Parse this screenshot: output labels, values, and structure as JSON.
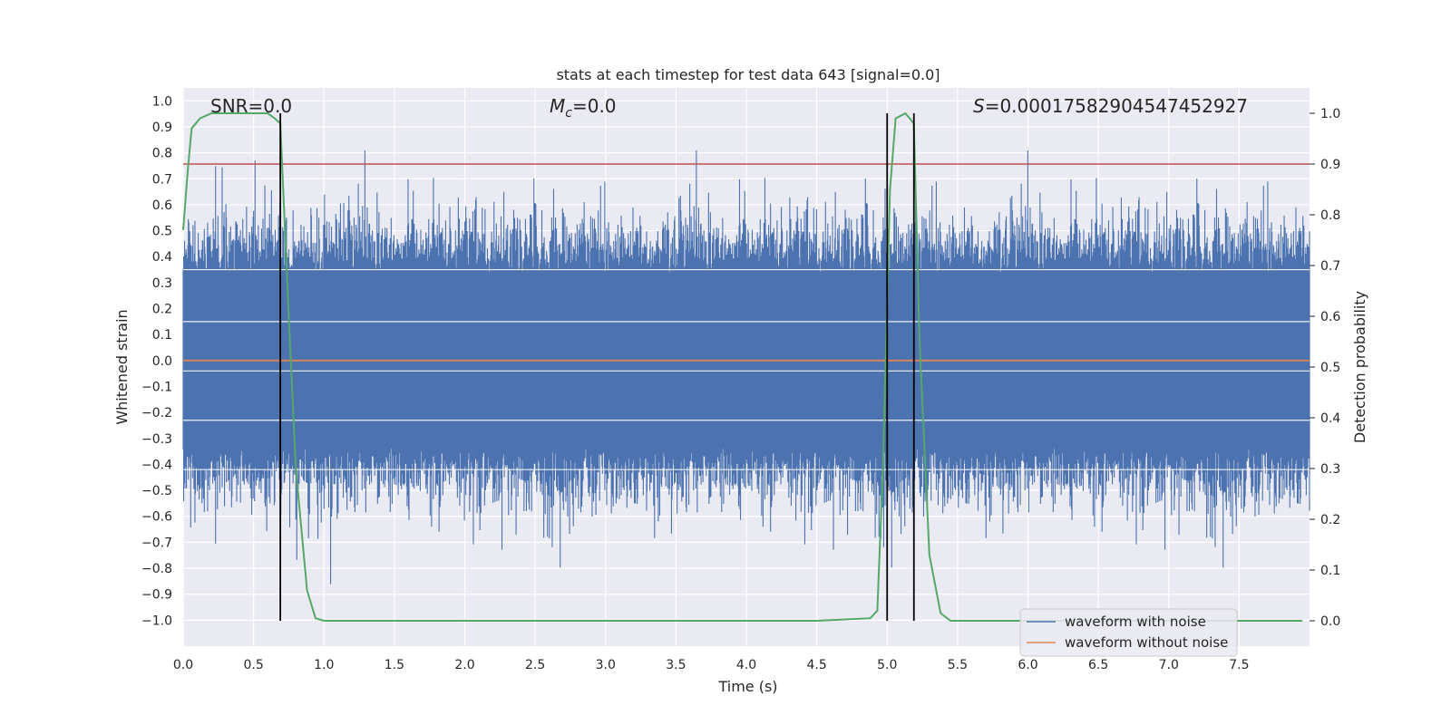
{
  "chart_data": {
    "type": "line",
    "title": "stats at each timestep for test data 643 [signal=0.0]",
    "xlabel": "Time (s)",
    "ylabel": "Whitened strain",
    "y2label": "Detection probability",
    "xlim": [
      0.0,
      8.0
    ],
    "ylim": [
      -1.1,
      1.05
    ],
    "y2lim": [
      -0.05,
      1.05
    ],
    "xticks": [
      "0.0",
      "0.5",
      "1.0",
      "1.5",
      "2.0",
      "2.5",
      "3.0",
      "3.5",
      "4.0",
      "4.5",
      "5.0",
      "5.5",
      "6.0",
      "6.5",
      "7.0",
      "7.5"
    ],
    "yticks": [
      "1.0",
      "0.9",
      "0.8",
      "0.7",
      "0.6",
      "0.5",
      "0.4",
      "0.3",
      "0.2",
      "0.1",
      "0.0",
      "-0.1",
      "-0.2",
      "-0.3",
      "-0.4",
      "-0.5",
      "-0.6",
      "-0.7",
      "-0.8",
      "-0.9",
      "-1.0"
    ],
    "y2ticks": [
      "1.0",
      "0.9",
      "0.8",
      "0.7",
      "0.6",
      "0.5",
      "0.4",
      "0.3",
      "0.2",
      "0.1",
      "0.0"
    ],
    "annotations": {
      "snr": "SNR=0.0",
      "mc_symbol": "M",
      "mc_sub": "c",
      "mc_value": "=0.0",
      "s_symbol": "S",
      "s_value": "=0.00017582904547452927"
    },
    "threshold_probability": 0.9,
    "vertical_markers_time": [
      0.69,
      5.0,
      5.19
    ],
    "series": [
      {
        "name": "waveform with noise",
        "color": "#4c72b0",
        "description_values": "dense noise samples, amplitude mostly within ±0.45, peaks to about ±0.95",
        "amplitude_envelope": 0.45,
        "peak_amplitude": 0.95
      },
      {
        "name": "waveform without noise",
        "color": "#dd8452",
        "values_constant": 0.0
      },
      {
        "name": "detection probability",
        "color": "#55a868",
        "axis": "right",
        "x": [
          0.0,
          0.03,
          0.06,
          0.12,
          0.2,
          0.3,
          0.4,
          0.5,
          0.6,
          0.65,
          0.69,
          0.75,
          0.8,
          0.88,
          0.94,
          1.0,
          1.1,
          1.5,
          2.0,
          2.5,
          3.0,
          3.5,
          4.0,
          4.5,
          4.88,
          4.93,
          4.97,
          5.02,
          5.06,
          5.13,
          5.19,
          5.23,
          5.3,
          5.38,
          5.45,
          5.6,
          6.0,
          7.0,
          7.95
        ],
        "values": [
          0.77,
          0.88,
          0.97,
          0.99,
          1.0,
          1.0,
          1.0,
          1.0,
          1.0,
          0.99,
          0.98,
          0.6,
          0.3,
          0.06,
          0.005,
          0.0,
          0.0,
          0.0,
          0.0,
          0.0,
          0.0,
          0.0,
          0.0,
          0.0,
          0.005,
          0.02,
          0.3,
          0.85,
          0.99,
          1.0,
          0.98,
          0.55,
          0.13,
          0.015,
          0.0,
          0.0,
          0.0,
          0.0,
          0.0
        ]
      }
    ],
    "threshold_color": "#c44e52",
    "legend_position": "lower-right",
    "legend": [
      "waveform with noise",
      "waveform without noise"
    ]
  }
}
